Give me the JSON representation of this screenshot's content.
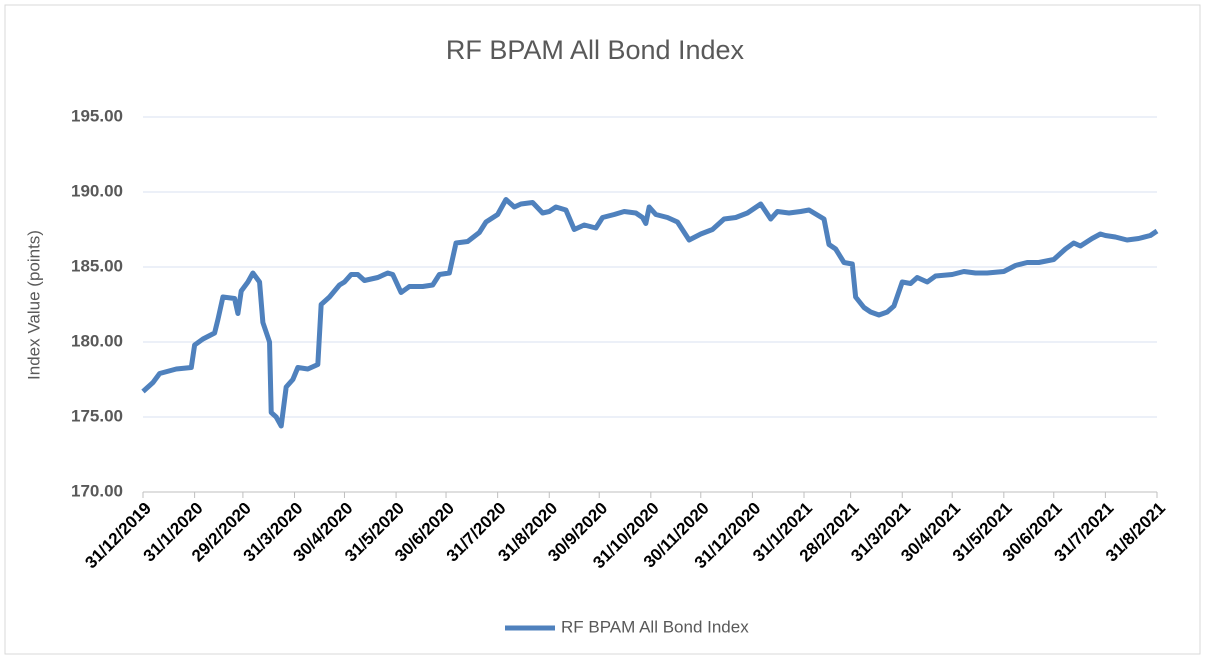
{
  "chart_data": {
    "type": "line",
    "title": "RF BPAM All Bond Index",
    "y_label": "Index Value (points)",
    "ylim": [
      170,
      195
    ],
    "yticks": [
      {
        "value": 170,
        "label": "170.00"
      },
      {
        "value": 175,
        "label": "175.00"
      },
      {
        "value": 180,
        "label": "180.00"
      },
      {
        "value": 185,
        "label": "185.00"
      },
      {
        "value": 190,
        "label": "190.00"
      },
      {
        "value": 195,
        "label": "195.00"
      }
    ],
    "xlim": [
      "31/12/2019",
      "31/8/2021"
    ],
    "xticks": [
      "31/12/2019",
      "31/1/2020",
      "29/2/2020",
      "31/3/2020",
      "30/4/2020",
      "31/5/2020",
      "30/6/2020",
      "31/7/2020",
      "31/8/2020",
      "30/9/2020",
      "31/10/2020",
      "30/11/2020",
      "31/12/2020",
      "31/1/2021",
      "28/2/2021",
      "31/3/2021",
      "30/4/2021",
      "31/5/2021",
      "30/6/2021",
      "31/7/2021",
      "31/8/2021"
    ],
    "grid": true,
    "legend": "bottom",
    "x": [
      "31/12/2019",
      "6/1/2020",
      "10/1/2020",
      "20/1/2020",
      "29/1/2020",
      "31/1/2020",
      "5/2/2020",
      "12/2/2020",
      "14/2/2020",
      "17/2/2020",
      "24/2/2020",
      "26/2/2020",
      "28/2/2020",
      "3/3/2020",
      "6/3/2020",
      "10/3/2020",
      "12/3/2020",
      "16/3/2020",
      "17/3/2020",
      "20/3/2020",
      "23/3/2020",
      "26/3/2020",
      "30/3/2020",
      "2/4/2020",
      "8/4/2020",
      "14/4/2020",
      "16/4/2020",
      "21/4/2020",
      "27/4/2020",
      "30/4/2020",
      "4/5/2020",
      "8/5/2020",
      "12/5/2020",
      "20/5/2020",
      "26/5/2020",
      "29/5/2020",
      "3/6/2020",
      "8/6/2020",
      "16/6/2020",
      "22/6/2020",
      "26/6/2020",
      "2/7/2020",
      "6/7/2020",
      "13/7/2020",
      "20/7/2020",
      "24/7/2020",
      "31/7/2020",
      "5/8/2020",
      "10/8/2020",
      "14/8/2020",
      "21/8/2020",
      "27/8/2020",
      "31/8/2020",
      "4/9/2020",
      "10/9/2020",
      "15/9/2020",
      "21/9/2020",
      "28/9/2020",
      "2/10/2020",
      "9/10/2020",
      "15/10/2020",
      "22/10/2020",
      "26/10/2020",
      "28/10/2020",
      "30/10/2020",
      "3/11/2020",
      "10/11/2020",
      "16/11/2020",
      "23/11/2020",
      "30/11/2020",
      "7/12/2020",
      "14/12/2020",
      "21/12/2020",
      "28/12/2020",
      "5/1/2021",
      "11/1/2021",
      "15/1/2021",
      "22/1/2021",
      "29/1/2021",
      "3/2/2021",
      "9/2/2021",
      "12/2/2021",
      "15/2/2021",
      "19/2/2021",
      "24/2/2021",
      "1/3/2021",
      "3/3/2021",
      "8/3/2021",
      "12/3/2021",
      "17/3/2021",
      "22/3/2021",
      "26/3/2021",
      "31/3/2021",
      "5/4/2021",
      "9/4/2021",
      "15/4/2021",
      "20/4/2021",
      "30/4/2021",
      "7/5/2021",
      "14/5/2021",
      "21/5/2021",
      "31/5/2021",
      "7/6/2021",
      "14/6/2021",
      "21/6/2021",
      "30/6/2021",
      "7/7/2021",
      "12/7/2021",
      "16/7/2021",
      "23/7/2021",
      "28/7/2021",
      "31/7/2021",
      "6/8/2021",
      "13/8/2021",
      "20/8/2021",
      "27/8/2021",
      "31/8/2021"
    ],
    "series": [
      {
        "name": "RF BPAM All Bond Index",
        "color": "#4f81bd",
        "values": [
          176.7,
          177.3,
          177.9,
          178.2,
          178.3,
          179.8,
          180.2,
          180.6,
          181.5,
          183.0,
          182.9,
          181.9,
          183.4,
          184.0,
          184.6,
          184.0,
          181.3,
          180.0,
          175.3,
          175.0,
          174.4,
          177.0,
          177.5,
          178.3,
          178.2,
          178.5,
          182.5,
          183.0,
          183.8,
          184.0,
          184.5,
          184.5,
          184.1,
          184.3,
          184.6,
          184.5,
          183.3,
          183.7,
          183.7,
          183.8,
          184.5,
          184.6,
          186.6,
          186.7,
          187.3,
          188.0,
          188.5,
          189.5,
          189.0,
          189.2,
          189.3,
          188.6,
          188.7,
          189.0,
          188.8,
          187.5,
          187.8,
          187.6,
          188.3,
          188.5,
          188.7,
          188.6,
          188.3,
          187.9,
          189.0,
          188.5,
          188.3,
          188.0,
          186.8,
          187.2,
          187.5,
          188.2,
          188.3,
          188.6,
          189.2,
          188.2,
          188.7,
          188.6,
          188.7,
          188.8,
          188.4,
          188.2,
          186.5,
          186.2,
          185.3,
          185.2,
          183.0,
          182.3,
          182.0,
          181.8,
          182.0,
          182.4,
          184.0,
          183.9,
          184.3,
          184.0,
          184.4,
          184.5,
          184.7,
          184.6,
          184.6,
          184.7,
          185.1,
          185.3,
          185.3,
          185.5,
          186.2,
          186.6,
          186.4,
          186.9,
          187.2,
          187.1,
          187.0,
          186.8,
          186.9,
          187.1,
          187.4
        ]
      }
    ]
  }
}
